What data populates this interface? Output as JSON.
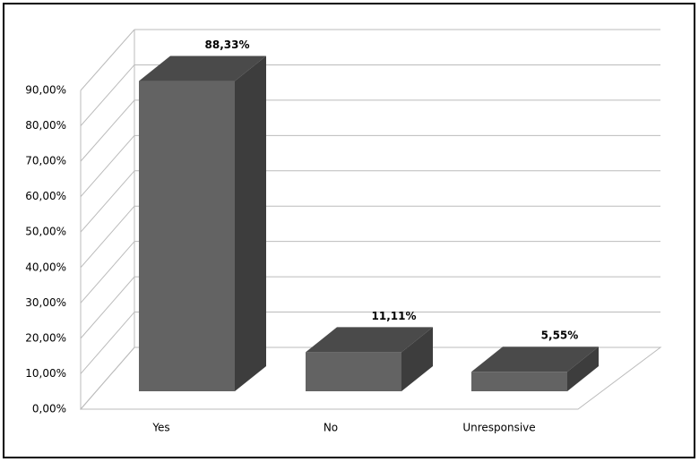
{
  "chart_data": {
    "type": "bar3d",
    "categories": [
      "Yes",
      "No",
      "Unresponsive"
    ],
    "values": [
      88.33,
      11.11,
      5.55
    ],
    "value_labels": [
      "88,33%",
      "11,11%",
      "5,55%"
    ],
    "color": "#636363",
    "ylim": [
      0,
      90
    ],
    "yticks": [
      {
        "value": 0,
        "label": "0,00%"
      },
      {
        "value": 10,
        "label": "10,00%"
      },
      {
        "value": 20,
        "label": "20,00%"
      },
      {
        "value": 30,
        "label": "30,00%"
      },
      {
        "value": 40,
        "label": "40,00%"
      },
      {
        "value": 50,
        "label": "50,00%"
      },
      {
        "value": 60,
        "label": "60,00%"
      },
      {
        "value": 70,
        "label": "70,00%"
      },
      {
        "value": 80,
        "label": "80,00%"
      },
      {
        "value": 90,
        "label": "90,00%"
      }
    ],
    "grid": true
  }
}
